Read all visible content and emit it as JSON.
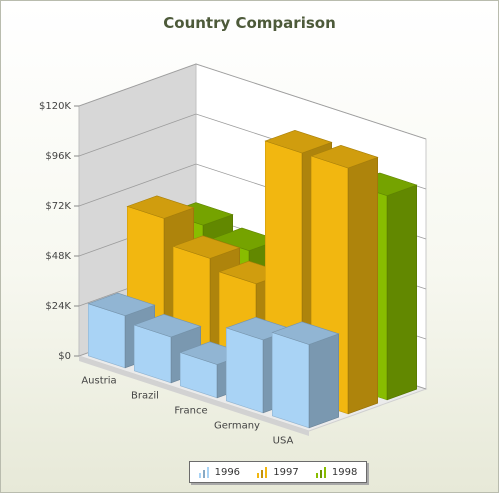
{
  "chart_data": {
    "type": "bar",
    "title": "Country Comparison",
    "categories": [
      "Austria",
      "Brazil",
      "France",
      "Germany",
      "USA"
    ],
    "series": [
      {
        "name": "1996",
        "values": [
          25000,
          22000,
          16000,
          35000,
          40000
        ],
        "color": "#a9d3f5"
      },
      {
        "name": "1997",
        "values": [
          65000,
          53000,
          48000,
          118000,
          118000
        ],
        "color": "#f2b710"
      },
      {
        "name": "1998",
        "values": [
          55000,
          50000,
          30000,
          66000,
          98000
        ],
        "color": "#88bd00"
      }
    ],
    "yticks": [
      "$0",
      "$24K",
      "$48K",
      "$72K",
      "$96K",
      "$120K"
    ],
    "ylim": [
      0,
      120000
    ],
    "grid": true,
    "legend": "bottom"
  },
  "legend": {
    "items": [
      {
        "label": "1996",
        "color": "#a9d3f5"
      },
      {
        "label": "1997",
        "color": "#f2b710"
      },
      {
        "label": "1998",
        "color": "#88bd00"
      }
    ]
  }
}
